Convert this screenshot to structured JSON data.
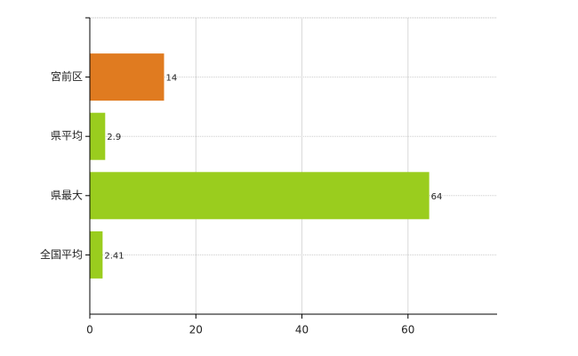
{
  "chart_data": {
    "type": "bar",
    "orientation": "horizontal",
    "categories": [
      "宮前区",
      "県平均",
      "県最大",
      "全国平均"
    ],
    "values": [
      14,
      2.9,
      64,
      2.41
    ],
    "colors": [
      "#e07b20",
      "#9acd1e",
      "#9acd1e",
      "#9acd1e"
    ],
    "xlim": [
      0,
      76.8
    ],
    "xticks": [
      0,
      20,
      40,
      60
    ],
    "grid": true
  }
}
